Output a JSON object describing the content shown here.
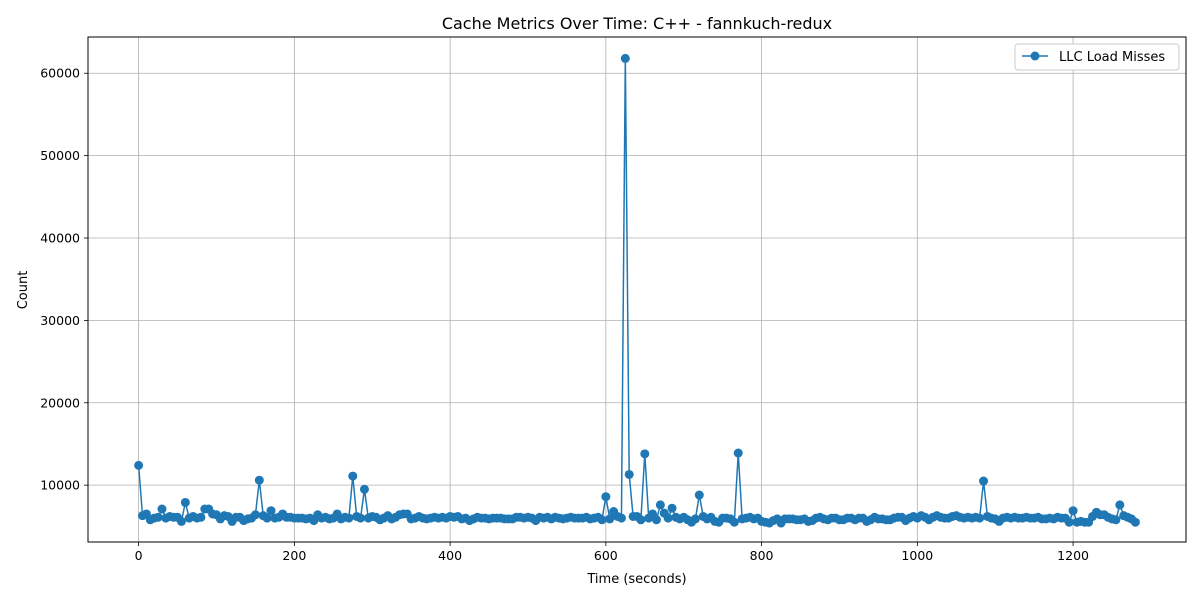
{
  "chart_data": {
    "type": "line",
    "title": "Cache Metrics Over Time: C++ - fannkuch-redux",
    "xlabel": "Time (seconds)",
    "ylabel": "Count",
    "xlim": [
      -65,
      1345
    ],
    "ylim": [
      3100,
      64400
    ],
    "xticks": [
      0,
      200,
      400,
      600,
      800,
      1000,
      1200
    ],
    "yticks": [
      10000,
      20000,
      30000,
      40000,
      50000,
      60000
    ],
    "grid": true,
    "legend_position": "top-right",
    "colors": {
      "series": "#1f77b4",
      "grid": "#b0b0b0"
    },
    "series": [
      {
        "name": "LLC Load Misses",
        "x": [
          0,
          5,
          10,
          15,
          20,
          25,
          30,
          35,
          40,
          45,
          50,
          55,
          60,
          65,
          70,
          75,
          80,
          85,
          90,
          95,
          100,
          105,
          110,
          115,
          120,
          125,
          130,
          135,
          140,
          145,
          150,
          155,
          160,
          165,
          170,
          175,
          180,
          185,
          190,
          195,
          200,
          205,
          210,
          215,
          220,
          225,
          230,
          235,
          240,
          245,
          250,
          255,
          260,
          265,
          270,
          275,
          280,
          285,
          290,
          295,
          300,
          305,
          310,
          315,
          320,
          325,
          330,
          335,
          340,
          345,
          350,
          355,
          360,
          365,
          370,
          375,
          380,
          385,
          390,
          395,
          400,
          405,
          410,
          415,
          420,
          425,
          430,
          435,
          440,
          445,
          450,
          455,
          460,
          465,
          470,
          475,
          480,
          485,
          490,
          495,
          500,
          505,
          510,
          515,
          520,
          525,
          530,
          535,
          540,
          545,
          550,
          555,
          560,
          565,
          570,
          575,
          580,
          585,
          590,
          595,
          600,
          605,
          610,
          615,
          620,
          625,
          630,
          635,
          640,
          645,
          650,
          655,
          660,
          665,
          670,
          675,
          680,
          685,
          690,
          695,
          700,
          705,
          710,
          715,
          720,
          725,
          730,
          735,
          740,
          745,
          750,
          755,
          760,
          765,
          770,
          775,
          780,
          785,
          790,
          795,
          800,
          805,
          810,
          815,
          820,
          825,
          830,
          835,
          840,
          845,
          850,
          855,
          860,
          865,
          870,
          875,
          880,
          885,
          890,
          895,
          900,
          905,
          910,
          915,
          920,
          925,
          930,
          935,
          940,
          945,
          950,
          955,
          960,
          965,
          970,
          975,
          980,
          985,
          990,
          995,
          1000,
          1005,
          1010,
          1015,
          1020,
          1025,
          1030,
          1035,
          1040,
          1045,
          1050,
          1055,
          1060,
          1065,
          1070,
          1075,
          1080,
          1085,
          1090,
          1095,
          1100,
          1105,
          1110,
          1115,
          1120,
          1125,
          1130,
          1135,
          1140,
          1145,
          1150,
          1155,
          1160,
          1165,
          1170,
          1175,
          1180,
          1185,
          1190,
          1195,
          1200,
          1205,
          1210,
          1215,
          1220,
          1225,
          1230,
          1235,
          1240,
          1245,
          1250,
          1255,
          1260,
          1265,
          1270,
          1275,
          1280
        ],
        "values": [
          12400,
          6300,
          6500,
          5800,
          6000,
          6100,
          7100,
          6000,
          6200,
          6100,
          6100,
          5600,
          7900,
          6000,
          6200,
          6000,
          6100,
          7100,
          7100,
          6500,
          6400,
          5900,
          6300,
          6200,
          5600,
          6100,
          6100,
          5700,
          5900,
          6000,
          6400,
          10600,
          6300,
          6000,
          6900,
          6000,
          6100,
          6500,
          6100,
          6100,
          6000,
          6000,
          6000,
          5900,
          6000,
          5700,
          6400,
          6000,
          6100,
          5900,
          6000,
          6500,
          5900,
          6100,
          6000,
          11100,
          6200,
          6000,
          9500,
          6000,
          6200,
          6100,
          5800,
          6000,
          6300,
          5900,
          6100,
          6400,
          6500,
          6500,
          5900,
          6000,
          6200,
          6000,
          5900,
          6000,
          6100,
          6000,
          6100,
          6000,
          6200,
          6100,
          6200,
          5900,
          6000,
          5700,
          5900,
          6100,
          6000,
          6000,
          5900,
          6000,
          6000,
          6000,
          5900,
          5900,
          5900,
          6100,
          6100,
          6000,
          6100,
          6000,
          5700,
          6100,
          6000,
          6100,
          5900,
          6100,
          6000,
          5900,
          6000,
          6100,
          6000,
          6000,
          6000,
          6100,
          5900,
          6000,
          6100,
          5800,
          8600,
          5900,
          6800,
          6200,
          6000,
          61800,
          11300,
          6200,
          6200,
          5800,
          13800,
          6000,
          6500,
          5800,
          7600,
          6600,
          6000,
          7200,
          6100,
          5900,
          6100,
          5800,
          5500,
          5900,
          8800,
          6200,
          5900,
          6100,
          5600,
          5500,
          6000,
          6000,
          5900,
          5500,
          13900,
          5900,
          6000,
          6100,
          5900,
          6000,
          5600,
          5500,
          5400,
          5700,
          5900,
          5400,
          5900,
          5900,
          5900,
          5800,
          5800,
          5900,
          5600,
          5700,
          6000,
          6100,
          5900,
          5800,
          6000,
          6000,
          5800,
          5800,
          6000,
          6000,
          5800,
          6000,
          6000,
          5600,
          5800,
          6100,
          5900,
          5900,
          5800,
          5800,
          6000,
          6100,
          6100,
          5700,
          6000,
          6200,
          6000,
          6300,
          6100,
          5800,
          6100,
          6300,
          6100,
          6000,
          6000,
          6200,
          6300,
          6100,
          6000,
          6100,
          6000,
          6100,
          6000,
          10500,
          6200,
          6000,
          5900,
          5600,
          6000,
          6100,
          6000,
          6100,
          6000,
          6000,
          6100,
          6000,
          6000,
          6100,
          5900,
          5900,
          6000,
          5900,
          6100,
          6000,
          6000,
          5500,
          6900,
          5500,
          5600,
          5500,
          5500,
          6200,
          6700,
          6400,
          6400,
          6100,
          5900,
          5800,
          7600,
          6300,
          6100,
          5900,
          5500
        ]
      }
    ]
  }
}
